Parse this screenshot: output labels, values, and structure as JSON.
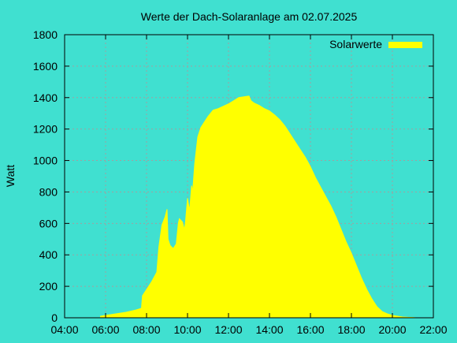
{
  "chart_data": {
    "type": "area",
    "title": "Werte der Dach-Solaranlage am 02.07.2025",
    "xlabel": "",
    "ylabel": "Watt",
    "xlim": [
      4,
      22
    ],
    "ylim": [
      0,
      1800
    ],
    "x_ticks": [
      4,
      6,
      8,
      10,
      12,
      14,
      16,
      18,
      20,
      22
    ],
    "x_tick_labels": [
      "04:00",
      "06:00",
      "08:00",
      "10:00",
      "12:00",
      "14:00",
      "16:00",
      "18:00",
      "20:00",
      "22:00"
    ],
    "y_ticks": [
      0,
      200,
      400,
      600,
      800,
      1000,
      1200,
      1400,
      1600,
      1800
    ],
    "y_tick_labels": [
      "0",
      "200",
      "400",
      "600",
      "800",
      "1000",
      "1200",
      "1400",
      "1600",
      "1800"
    ],
    "grid": true,
    "legend_position": "top-right",
    "series": [
      {
        "name": "Solarwerte",
        "color": "#ffff00",
        "x": [
          5.75,
          6.0,
          6.5,
          7.0,
          7.5,
          7.75,
          7.8,
          8.0,
          8.25,
          8.5,
          8.6,
          8.75,
          8.9,
          9.0,
          9.05,
          9.15,
          9.3,
          9.45,
          9.55,
          9.6,
          9.75,
          9.85,
          9.9,
          10.0,
          10.1,
          10.2,
          10.25,
          10.35,
          10.5,
          10.6,
          10.65,
          10.75,
          11.0,
          11.25,
          11.5,
          11.75,
          12.0,
          12.25,
          12.5,
          12.75,
          13.0,
          13.1,
          13.25,
          13.5,
          13.75,
          14.0,
          14.25,
          14.5,
          14.75,
          15.0,
          15.25,
          15.5,
          15.75,
          16.0,
          16.25,
          16.5,
          16.75,
          17.0,
          17.25,
          17.5,
          17.75,
          18.0,
          18.25,
          18.5,
          18.75,
          19.0,
          19.25,
          19.5,
          19.75,
          20.0,
          20.25,
          20.5,
          20.75,
          21.0,
          21.15
        ],
        "values": [
          10,
          15,
          25,
          35,
          50,
          60,
          140,
          180,
          230,
          290,
          450,
          590,
          640,
          690,
          500,
          460,
          440,
          470,
          600,
          630,
          610,
          560,
          610,
          760,
          680,
          840,
          800,
          980,
          1150,
          1190,
          1210,
          1230,
          1280,
          1320,
          1330,
          1345,
          1360,
          1380,
          1400,
          1405,
          1410,
          1380,
          1365,
          1350,
          1330,
          1315,
          1290,
          1260,
          1220,
          1170,
          1120,
          1070,
          1020,
          960,
          890,
          830,
          770,
          710,
          640,
          560,
          480,
          410,
          330,
          250,
          180,
          120,
          70,
          40,
          25,
          15,
          10,
          5,
          3,
          2,
          0
        ]
      }
    ]
  }
}
